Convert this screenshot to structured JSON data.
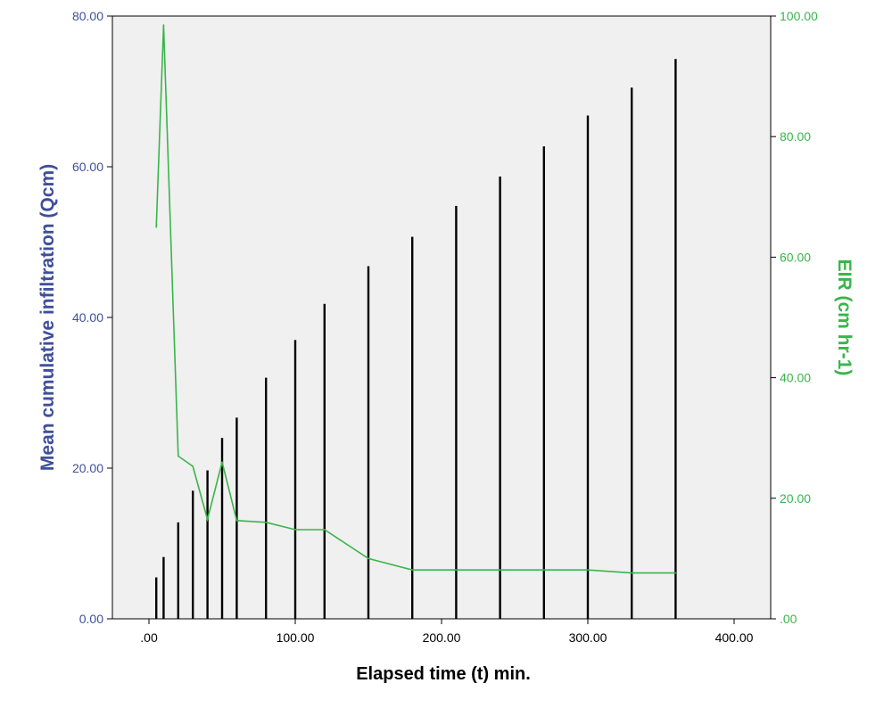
{
  "chart_data": {
    "type": "bar",
    "title": "",
    "xlabel": "Elapsed time (t) min.",
    "ylabel": "Mean  cumulative infiltration (Qcm)",
    "y2label": "EIR (cm hr-1)",
    "xlim": [
      -25,
      425
    ],
    "ylim": [
      0,
      80
    ],
    "y2lim": [
      0,
      100
    ],
    "x_ticks": [
      ".00",
      "100.00",
      "200.00",
      "300.00",
      "400.00"
    ],
    "y_ticks": [
      "0.00",
      "20.00",
      "40.00",
      "60.00",
      "80.00"
    ],
    "y2_ticks": [
      ".00",
      "20.00",
      "40.00",
      "60.00",
      "80.00",
      "100.00"
    ],
    "grid": false,
    "colors": {
      "bars": "#000000",
      "line": "#39b54a",
      "left_axis_text": "#3f4f9a",
      "right_axis_text": "#39b54a",
      "plot_background": "#f0f0f0"
    },
    "series": [
      {
        "kind": "bar",
        "axis": "left",
        "x": [
          5,
          10,
          20,
          30,
          40,
          50,
          60,
          80,
          100,
          120,
          150,
          180,
          210,
          240,
          270,
          300,
          330,
          360
        ],
        "values": [
          5.5,
          8.2,
          12.8,
          17.0,
          19.7,
          24.0,
          26.7,
          32.0,
          37.0,
          41.8,
          46.8,
          50.7,
          54.8,
          58.7,
          62.7,
          66.8,
          70.5,
          74.3
        ]
      },
      {
        "kind": "line",
        "axis": "right",
        "x": [
          5,
          10,
          20,
          30,
          40,
          50,
          60,
          80,
          100,
          120,
          150,
          180,
          210,
          240,
          270,
          300,
          330,
          360
        ],
        "values": [
          65.0,
          98.5,
          27.0,
          25.3,
          16.5,
          26.0,
          16.3,
          16.0,
          14.8,
          14.8,
          10.0,
          8.1,
          8.1,
          8.1,
          8.1,
          8.1,
          7.6,
          7.6
        ]
      }
    ]
  }
}
